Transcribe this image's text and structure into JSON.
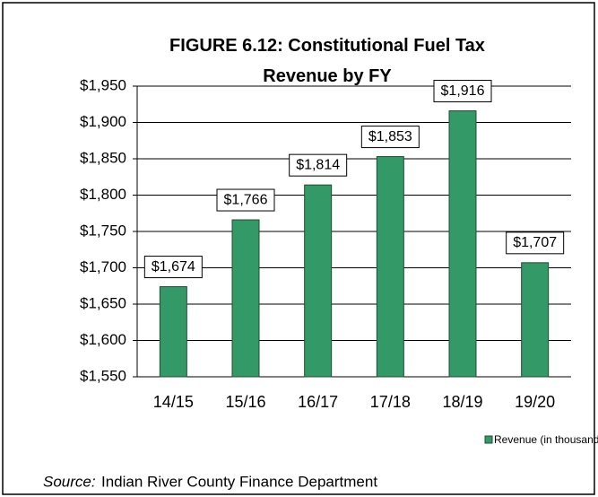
{
  "chart_data": {
    "type": "bar",
    "title": "FIGURE 6.12: Constitutional Fuel Tax Revenue by FY",
    "categories": [
      "14/15",
      "15/16",
      "16/17",
      "17/18",
      "18/19",
      "19/20"
    ],
    "series": [
      {
        "name": "Revenue (in thousands)",
        "color": "#339966",
        "values": [
          1674,
          1766,
          1814,
          1853,
          1916,
          1707
        ],
        "value_labels": [
          "$1,674",
          "$1,766",
          "$1,814",
          "$1,853",
          "$1,916",
          "$1,707"
        ]
      }
    ],
    "ylim": [
      1550,
      1950
    ],
    "yticks": [
      {
        "value": 1550,
        "label": "$1,550"
      },
      {
        "value": 1600,
        "label": "$1,600"
      },
      {
        "value": 1650,
        "label": "$1,650"
      },
      {
        "value": 1700,
        "label": "$1,700"
      },
      {
        "value": 1750,
        "label": "$1,750"
      },
      {
        "value": 1800,
        "label": "$1,800"
      },
      {
        "value": 1850,
        "label": "$1,850"
      },
      {
        "value": 1900,
        "label": "$1,900"
      },
      {
        "value": 1950,
        "label": "$1,950"
      }
    ],
    "grid": true,
    "legend": "bottom-right",
    "source": {
      "label": "Source:",
      "text": "Indian River County Finance Department"
    }
  }
}
